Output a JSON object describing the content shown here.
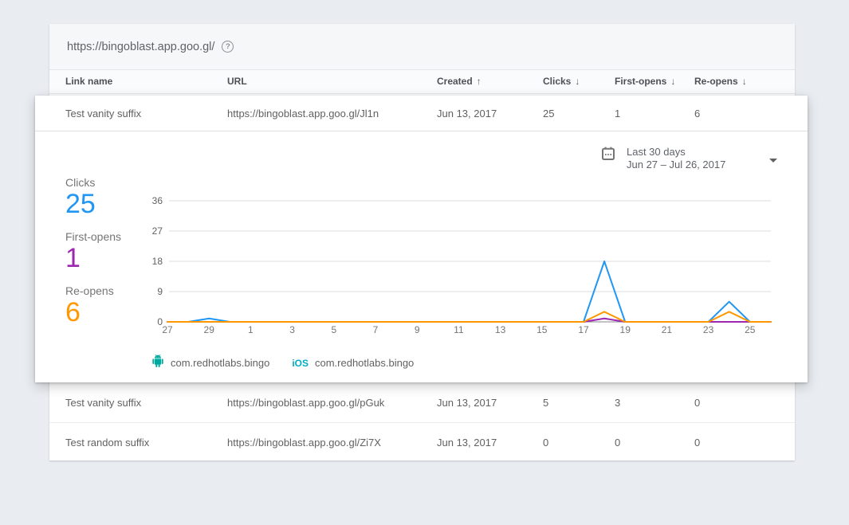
{
  "header": {
    "domain_url": "https://bingoblast.app.goo.gl/",
    "help_glyph": "?"
  },
  "table": {
    "columns": [
      {
        "label": "Link name",
        "sort_icon": ""
      },
      {
        "label": "URL",
        "sort_icon": ""
      },
      {
        "label": "Created",
        "sort_icon": "↑"
      },
      {
        "label": "Clicks",
        "sort_icon": "↓"
      },
      {
        "label": "First-opens",
        "sort_icon": "↓"
      },
      {
        "label": "Re-opens",
        "sort_icon": "↓"
      }
    ],
    "expanded_row": {
      "name": "Test vanity suffix",
      "url": "https://bingoblast.app.goo.gl/Jl1n",
      "created": "Jun 13, 2017",
      "clicks": "25",
      "first_opens": "1",
      "re_opens": "6"
    },
    "rows": [
      {
        "name": "Test vanity suffix",
        "url": "https://bingoblast.app.goo.gl/pGuk",
        "created": "Jun 13, 2017",
        "clicks": "5",
        "first_opens": "3",
        "re_opens": "0"
      },
      {
        "name": "Test random suffix",
        "url": "https://bingoblast.app.goo.gl/Zi7X",
        "created": "Jun 13, 2017",
        "clicks": "0",
        "first_opens": "0",
        "re_opens": "0"
      }
    ]
  },
  "panel": {
    "date_selector": {
      "label": "Last 30 days",
      "range": "Jun 27 – Jul 26, 2017"
    },
    "stats": [
      {
        "label": "Clicks",
        "value": "25",
        "color": "#2196F3"
      },
      {
        "label": "First-opens",
        "value": "1",
        "color": "#9C27B0"
      },
      {
        "label": "Re-opens",
        "value": "6",
        "color": "#FF9800"
      }
    ],
    "legend": [
      {
        "platform": "android",
        "label": "com.redhotlabs.bingo"
      },
      {
        "platform": "ios",
        "ios_glyph": "iOS",
        "label": "com.redhotlabs.bingo"
      }
    ]
  },
  "chart_data": {
    "type": "line",
    "title": "",
    "xlabel": "",
    "ylabel": "",
    "x": [
      "27",
      "28",
      "29",
      "30",
      "1",
      "2",
      "3",
      "4",
      "5",
      "6",
      "7",
      "8",
      "9",
      "10",
      "11",
      "12",
      "13",
      "14",
      "15",
      "16",
      "17",
      "18",
      "19",
      "20",
      "21",
      "22",
      "23",
      "24",
      "25",
      "26"
    ],
    "x_tick_labels": [
      "27",
      "29",
      "1",
      "3",
      "5",
      "7",
      "9",
      "11",
      "13",
      "15",
      "17",
      "19",
      "21",
      "23",
      "25"
    ],
    "y_ticks": [
      0,
      9,
      18,
      27,
      36
    ],
    "ylim": [
      0,
      36
    ],
    "grid": true,
    "legend_position": "bottom",
    "series": [
      {
        "name": "Clicks",
        "color": "#2196F3",
        "values": [
          0,
          0,
          1,
          0,
          0,
          0,
          0,
          0,
          0,
          0,
          0,
          0,
          0,
          0,
          0,
          0,
          0,
          0,
          0,
          0,
          0,
          18,
          0,
          0,
          0,
          0,
          0,
          6,
          0,
          0
        ]
      },
      {
        "name": "First-opens",
        "color": "#9C27B0",
        "values": [
          0,
          0,
          0,
          0,
          0,
          0,
          0,
          0,
          0,
          0,
          0,
          0,
          0,
          0,
          0,
          0,
          0,
          0,
          0,
          0,
          0,
          1,
          0,
          0,
          0,
          0,
          0,
          0,
          0,
          0
        ]
      },
      {
        "name": "Re-opens",
        "color": "#FF9800",
        "values": [
          0,
          0,
          0,
          0,
          0,
          0,
          0,
          0,
          0,
          0,
          0,
          0,
          0,
          0,
          0,
          0,
          0,
          0,
          0,
          0,
          0,
          3,
          0,
          0,
          0,
          0,
          0,
          3,
          0,
          0
        ]
      }
    ]
  },
  "colors": {
    "accent_blue": "#2196F3",
    "accent_purple": "#9C27B0",
    "accent_orange": "#FF9800",
    "android_teal": "#00A99D",
    "ios_teal": "#00ACC1",
    "background": "#e9edf1"
  }
}
